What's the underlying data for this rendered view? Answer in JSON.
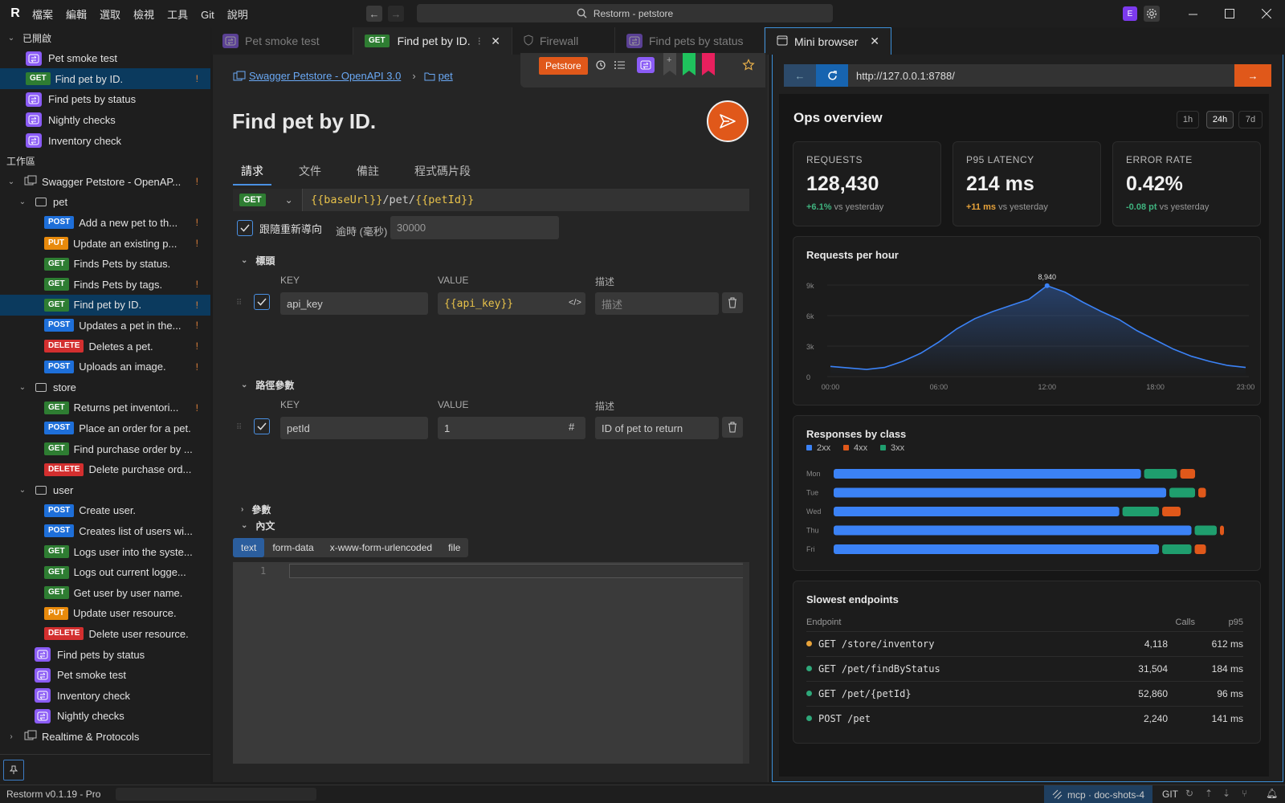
{
  "app": {
    "logo": "R",
    "menus": [
      "檔案",
      "編輯",
      "選取",
      "檢視",
      "工具",
      "Git",
      "說明"
    ],
    "search_text": "Restorm - petstore",
    "avatar": "E"
  },
  "sidebar": {
    "opened_label": "已開啟",
    "opened": [
      {
        "kind": "coll",
        "label": "Pet smoke test"
      },
      {
        "kind": "req",
        "method": "GET",
        "label": "Find pet by ID.",
        "warn": "!",
        "selected": true
      },
      {
        "kind": "coll",
        "label": "Find pets by status"
      },
      {
        "kind": "coll",
        "label": "Nightly checks"
      },
      {
        "kind": "coll",
        "label": "Inventory check"
      }
    ],
    "workspace_label": "工作區",
    "project": "Swagger Petstore - OpenAP...",
    "project_warn": "!",
    "folders": [
      {
        "name": "pet",
        "items": [
          {
            "method": "POST",
            "label": "Add a new pet to th...",
            "warn": "!"
          },
          {
            "method": "PUT",
            "label": "Update an existing p...",
            "warn": "!"
          },
          {
            "method": "GET",
            "label": "Finds Pets by status.",
            "warn": ""
          },
          {
            "method": "GET",
            "label": "Finds Pets by tags.",
            "warn": "!"
          },
          {
            "method": "GET",
            "label": "Find pet by ID.",
            "warn": "!",
            "selected": true
          },
          {
            "method": "POST",
            "label": "Updates a pet in the...",
            "warn": "!"
          },
          {
            "method": "DELETE",
            "label": "Deletes a pet.",
            "warn": "!"
          },
          {
            "method": "POST",
            "label": "Uploads an image.",
            "warn": "!"
          }
        ]
      },
      {
        "name": "store",
        "items": [
          {
            "method": "GET",
            "label": "Returns pet inventori...",
            "warn": "!"
          },
          {
            "method": "POST",
            "label": "Place an order for a pet.",
            "warn": ""
          },
          {
            "method": "GET",
            "label": "Find purchase order by ...",
            "warn": ""
          },
          {
            "method": "DELETE",
            "label": "Delete purchase ord...",
            "warn": ""
          }
        ]
      },
      {
        "name": "user",
        "items": [
          {
            "method": "POST",
            "label": "Create user.",
            "warn": ""
          },
          {
            "method": "POST",
            "label": "Creates list of users wi...",
            "warn": ""
          },
          {
            "method": "GET",
            "label": "Logs user into the syste...",
            "warn": ""
          },
          {
            "method": "GET",
            "label": "Logs out current logge...",
            "warn": ""
          },
          {
            "method": "GET",
            "label": "Get user by user name.",
            "warn": ""
          },
          {
            "method": "PUT",
            "label": "Update user resource.",
            "warn": ""
          },
          {
            "method": "DELETE",
            "label": "Delete user resource.",
            "warn": ""
          }
        ]
      }
    ],
    "collections": [
      "Find pets by status",
      "Pet smoke test",
      "Inventory check",
      "Nightly checks"
    ],
    "realtime": "Realtime & Protocols"
  },
  "tabs": [
    {
      "label": "Pet smoke test",
      "kind": "coll"
    },
    {
      "label": "Find pet by ID.",
      "kind": "req",
      "method": "GET",
      "active": true
    },
    {
      "label": "Firewall",
      "kind": "shield"
    },
    {
      "label": "Find pets by status",
      "kind": "coll"
    },
    {
      "label": "Mini browser",
      "kind": "mini"
    }
  ],
  "request": {
    "env": "Petstore",
    "breadcrumb": [
      "Swagger Petstore - OpenAPI 3.0",
      "pet"
    ],
    "title": "Find pet by ID.",
    "subtabs": [
      "請求",
      "文件",
      "備註",
      "程式碼片段"
    ],
    "method": "GET",
    "url_var1": "{{baseUrl}}",
    "url_mid": "/pet/",
    "url_var2": "{{petId}}",
    "follow_redirect": "跟隨重新導向",
    "timeout_label": "逾時 (毫秒)",
    "timeout_value": "30000",
    "headers_label": "標頭",
    "col_key": "KEY",
    "col_value": "VALUE",
    "col_desc": "描述",
    "header_row": {
      "key": "api_key",
      "value": "{{api_key}}",
      "desc_placeholder": "描述"
    },
    "path_label": "路徑參數",
    "path_row": {
      "key": "petId",
      "value": "1",
      "desc": "ID of pet to return"
    },
    "params_label": "參數",
    "body_label": "內文",
    "body_tabs": [
      "text",
      "form-data",
      "x-www-form-urlencoded",
      "file"
    ],
    "line_no": "1"
  },
  "browser": {
    "url": "http://127.0.0.1:8788/",
    "heading": "Ops overview",
    "ranges": [
      "1h",
      "24h",
      "7d"
    ],
    "kpis": [
      {
        "title": "REQUESTS",
        "value": "128,430",
        "delta": "+6.1%",
        "rest": " vs yesterday",
        "color": "#3fb37f"
      },
      {
        "title": "P95 LATENCY",
        "value": "214 ms",
        "delta": "+11 ms",
        "rest": " vs yesterday",
        "color": "#e8a33a"
      },
      {
        "title": "ERROR RATE",
        "value": "0.42%",
        "delta": "-0.08 pt",
        "rest": " vs yesterday",
        "color": "#3fb37f"
      }
    ],
    "slow": {
      "title": "Slowest endpoints",
      "headers": [
        "Endpoint",
        "Calls",
        "p95"
      ],
      "rows": [
        {
          "endpoint": "GET /store/inventory",
          "calls": "4,118",
          "p95": "612 ms",
          "color": "#e8a33a"
        },
        {
          "endpoint": "GET /pet/findByStatus",
          "calls": "31,504",
          "p95": "184 ms",
          "color": "#2ea87a"
        },
        {
          "endpoint": "GET /pet/{petId}",
          "calls": "52,860",
          "p95": "96 ms",
          "color": "#2ea87a"
        },
        {
          "endpoint": "POST /pet",
          "calls": "2,240",
          "p95": "141 ms",
          "color": "#2ea87a"
        }
      ]
    }
  },
  "chart_data": [
    {
      "type": "area",
      "title": "Requests per hour",
      "x": [
        "00:00",
        "01:00",
        "02:00",
        "03:00",
        "04:00",
        "05:00",
        "06:00",
        "07:00",
        "08:00",
        "09:00",
        "10:00",
        "11:00",
        "12:00",
        "13:00",
        "14:00",
        "15:00",
        "16:00",
        "17:00",
        "18:00",
        "19:00",
        "20:00",
        "21:00",
        "22:00",
        "23:00"
      ],
      "y": [
        1000,
        850,
        700,
        900,
        1500,
        2300,
        3400,
        4700,
        5700,
        6400,
        7000,
        7600,
        8940,
        8300,
        7300,
        6400,
        5600,
        4500,
        3600,
        2700,
        2000,
        1500,
        1100,
        900
      ],
      "xticks": [
        "00:00",
        "06:00",
        "12:00",
        "18:00",
        "23:00"
      ],
      "yticks": [
        "0",
        "3k",
        "6k",
        "9k"
      ],
      "ylim": [
        0,
        9000
      ],
      "peak_label": "8,940",
      "color": "#3b82f6"
    },
    {
      "type": "bar",
      "orientation": "horizontal",
      "stacked": true,
      "title": "Responses by class",
      "categories": [
        "Mon",
        "Tue",
        "Wed",
        "Thu",
        "Fri"
      ],
      "series": [
        {
          "name": "2xx",
          "color": "#3b82f6",
          "values": [
            86,
            93,
            80,
            100,
            91
          ]
        },
        {
          "name": "3xx",
          "color": "#1f9e6e",
          "values": [
            10,
            8,
            11,
            7,
            9
          ]
        },
        {
          "name": "4xx",
          "color": "#e0581a",
          "values": [
            5,
            3,
            6,
            2,
            4
          ]
        }
      ],
      "legend_order": [
        "2xx",
        "4xx",
        "3xx"
      ]
    }
  ],
  "statusbar": {
    "version": "Restorm v0.1.19 - Pro",
    "mcp": "mcp · doc-shots-4",
    "git": "GIT"
  }
}
